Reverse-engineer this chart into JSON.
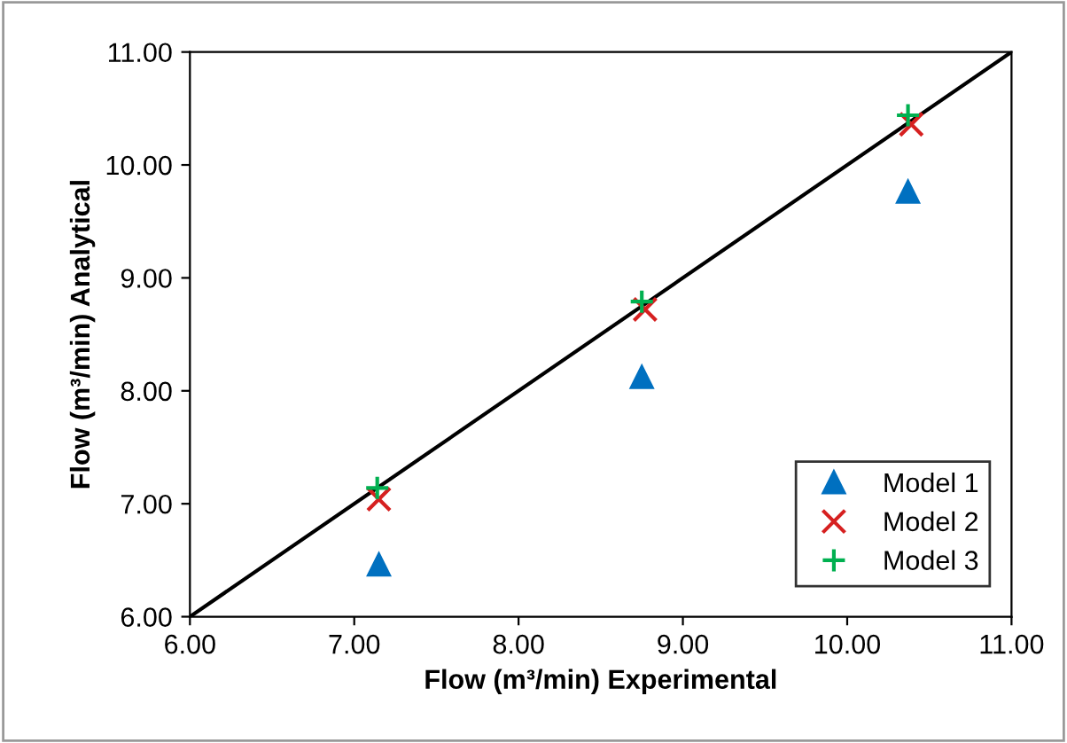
{
  "chart_data": {
    "type": "scatter",
    "xlabel": "Flow (m³/min) Experimental",
    "ylabel": "Flow (m³/min) Analytical",
    "xlim": [
      6,
      11
    ],
    "ylim": [
      6,
      11
    ],
    "xticks": [
      {
        "value": 6,
        "label": "6.00"
      },
      {
        "value": 7,
        "label": "7.00"
      },
      {
        "value": 8,
        "label": "8.00"
      },
      {
        "value": 9,
        "label": "9.00"
      },
      {
        "value": 10,
        "label": "10.00"
      },
      {
        "value": 11,
        "label": "11.00"
      }
    ],
    "yticks": [
      {
        "value": 6,
        "label": "6.00"
      },
      {
        "value": 7,
        "label": "7.00"
      },
      {
        "value": 8,
        "label": "8.00"
      },
      {
        "value": 9,
        "label": "9.00"
      },
      {
        "value": 10,
        "label": "10.00"
      },
      {
        "value": 11,
        "label": "11.00"
      }
    ],
    "grid": false,
    "legend": "bottom right",
    "series": [
      {
        "type": "line",
        "color": "#000000",
        "x": [
          6,
          11
        ],
        "values": [
          6,
          11
        ],
        "marker": "none",
        "line_style": "solid"
      },
      {
        "name": "Model 1",
        "color": "#0070c0",
        "marker": "triangle",
        "x": [
          7.15,
          8.75,
          10.37
        ],
        "values": [
          6.46,
          8.12,
          9.76
        ]
      },
      {
        "name": "Model 2",
        "color": "#d62020",
        "marker": "cross",
        "x": [
          7.15,
          8.77,
          10.39
        ],
        "values": [
          7.04,
          8.72,
          10.36
        ]
      },
      {
        "name": "Model 3",
        "color": "#00b050",
        "marker": "plus",
        "x": [
          7.14,
          8.75,
          10.37
        ],
        "values": [
          7.14,
          8.79,
          10.44
        ]
      }
    ]
  }
}
